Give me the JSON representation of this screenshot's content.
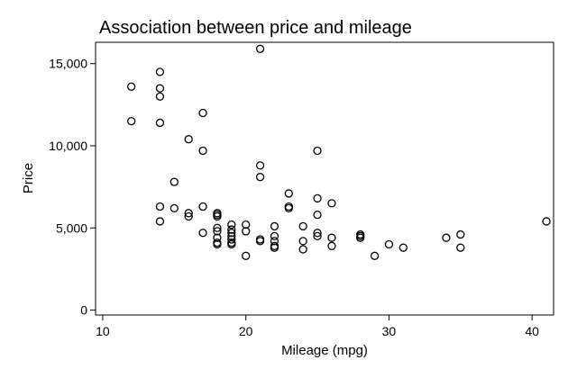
{
  "chart_data": {
    "type": "scatter",
    "title": "Association between price and mileage",
    "xlabel": "Mileage (mpg)",
    "ylabel": "Price",
    "xlim": [
      9.5,
      41.5
    ],
    "ylim": [
      -300,
      16300
    ],
    "x_ticks": [
      10,
      20,
      30,
      40
    ],
    "x_tick_labels": [
      "10",
      "20",
      "30",
      "40"
    ],
    "y_ticks": [
      0,
      5000,
      10000,
      15000
    ],
    "y_tick_labels": [
      "0",
      "5,000",
      "10,000",
      "15,000"
    ],
    "grid": false,
    "legend": "none",
    "colors": {
      "marker_stroke": "#000000",
      "axis": "#000000",
      "background": "#ffffff"
    },
    "series": [
      {
        "points": [
          [
            12,
            13600
          ],
          [
            12,
            11500
          ],
          [
            14,
            14500
          ],
          [
            14,
            13500
          ],
          [
            14,
            13000
          ],
          [
            14,
            11400
          ],
          [
            14,
            6300
          ],
          [
            14,
            5400
          ],
          [
            15,
            7800
          ],
          [
            15,
            6200
          ],
          [
            16,
            10400
          ],
          [
            16,
            5900
          ],
          [
            16,
            5700
          ],
          [
            17,
            12000
          ],
          [
            17,
            9700
          ],
          [
            17,
            6300
          ],
          [
            17,
            4700
          ],
          [
            18,
            5900
          ],
          [
            18,
            5800
          ],
          [
            18,
            5700
          ],
          [
            18,
            5000
          ],
          [
            18,
            4800
          ],
          [
            18,
            4400
          ],
          [
            18,
            4100
          ],
          [
            18,
            4000
          ],
          [
            19,
            5200
          ],
          [
            19,
            4900
          ],
          [
            19,
            4700
          ],
          [
            19,
            4500
          ],
          [
            19,
            4300
          ],
          [
            19,
            4100
          ],
          [
            19,
            4000
          ],
          [
            20,
            5200
          ],
          [
            20,
            4800
          ],
          [
            20,
            3300
          ],
          [
            21,
            15900
          ],
          [
            21,
            8800
          ],
          [
            21,
            8100
          ],
          [
            21,
            4300
          ],
          [
            21,
            4200
          ],
          [
            22,
            5100
          ],
          [
            22,
            4500
          ],
          [
            22,
            4200
          ],
          [
            22,
            3900
          ],
          [
            22,
            3800
          ],
          [
            23,
            7100
          ],
          [
            23,
            6300
          ],
          [
            23,
            6200
          ],
          [
            24,
            5100
          ],
          [
            24,
            4200
          ],
          [
            24,
            3700
          ],
          [
            25,
            9700
          ],
          [
            25,
            6800
          ],
          [
            25,
            5800
          ],
          [
            25,
            4700
          ],
          [
            25,
            4500
          ],
          [
            26,
            6500
          ],
          [
            26,
            4400
          ],
          [
            26,
            3900
          ],
          [
            28,
            4600
          ],
          [
            28,
            4500
          ],
          [
            28,
            4400
          ],
          [
            29,
            3300
          ],
          [
            30,
            4000
          ],
          [
            31,
            3800
          ],
          [
            34,
            4400
          ],
          [
            35,
            4600
          ],
          [
            35,
            3800
          ],
          [
            41,
            5400
          ]
        ]
      }
    ]
  }
}
